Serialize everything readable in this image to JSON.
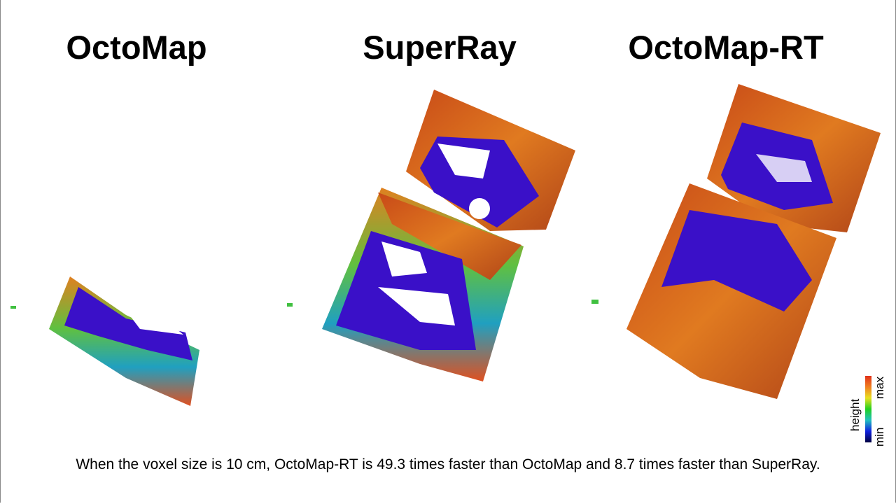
{
  "titles": [
    "OctoMap",
    "SuperRay",
    "OctoMap-RT"
  ],
  "caption": "When the voxel size is 10 cm, OctoMap-RT is 49.3 times faster than OctoMap and 8.7 times faster than SuperRay.",
  "colorbar": {
    "label": "height",
    "min_label": "min",
    "max_label": "max",
    "colors": [
      "#000040",
      "#1020e0",
      "#20c0c0",
      "#20d020",
      "#e8e020",
      "#f08020",
      "#e0301a"
    ]
  },
  "colors": {
    "floor": "#3a10c8",
    "wall": "#d8601a"
  }
}
